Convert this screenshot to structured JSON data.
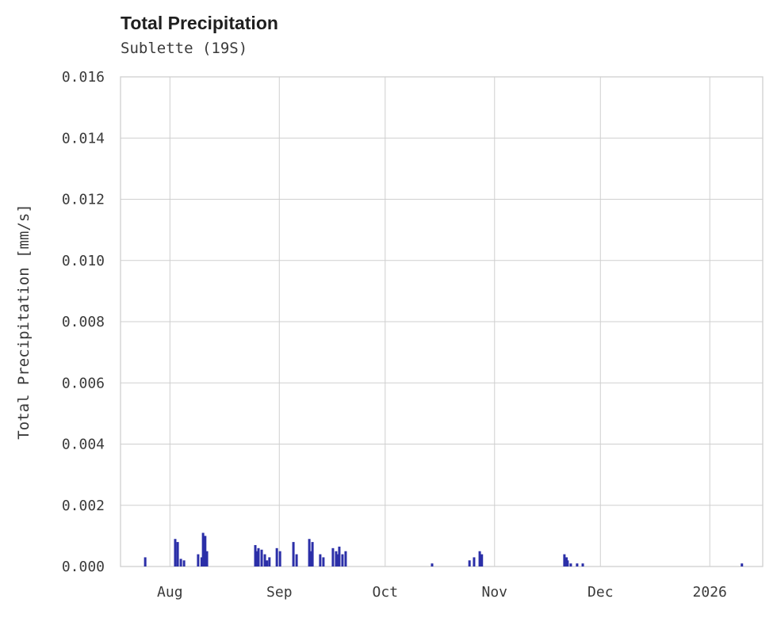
{
  "header": {
    "title": "Total Precipitation",
    "subtitle": "Sublette (19S)"
  },
  "colors": {
    "bar": "#2b2fa8",
    "grid": "#cfcfcf",
    "text": "#3a3a3a",
    "title_text": "#1f1f1f",
    "background": "#ffffff"
  },
  "chart_data": {
    "type": "bar",
    "title": "Total Precipitation",
    "subtitle": "Sublette (19S)",
    "xlabel": "",
    "ylabel": "Total Precipitation [mm/s]",
    "ylim": [
      0,
      0.016
    ],
    "yticks": [
      0.0,
      0.002,
      0.004,
      0.006,
      0.008,
      0.01,
      0.012,
      0.014,
      0.016
    ],
    "ytick_labels": [
      "0.000",
      "0.002",
      "0.004",
      "0.006",
      "0.008",
      "0.010",
      "0.012",
      "0.014",
      "0.016"
    ],
    "grid": true,
    "grid_color": "#cfcfcf",
    "bar_color": "#2b2fa8",
    "x_axis_start_date": "2025-07-18",
    "x_domain_days": 182,
    "xticks": [
      {
        "label": "Aug",
        "day": 14
      },
      {
        "label": "Sep",
        "day": 45
      },
      {
        "label": "Oct",
        "day": 75
      },
      {
        "label": "Nov",
        "day": 106
      },
      {
        "label": "Dec",
        "day": 136
      },
      {
        "label": "2026",
        "day": 167
      }
    ],
    "points": [
      {
        "date": "2025-07-25",
        "day": 7.0,
        "value": 0.0003
      },
      {
        "date": "2025-08-02",
        "day": 15.5,
        "value": 0.0009
      },
      {
        "date": "2025-08-03",
        "day": 16.2,
        "value": 0.0008
      },
      {
        "date": "2025-08-04",
        "day": 17.1,
        "value": 0.00025
      },
      {
        "date": "2025-08-05",
        "day": 18.0,
        "value": 0.0002
      },
      {
        "date": "2025-08-09",
        "day": 22.0,
        "value": 0.0004
      },
      {
        "date": "2025-08-10",
        "day": 23.0,
        "value": 0.0003
      },
      {
        "date": "2025-08-10",
        "day": 23.4,
        "value": 0.0011
      },
      {
        "date": "2025-08-11",
        "day": 24.0,
        "value": 0.001
      },
      {
        "date": "2025-08-11",
        "day": 24.5,
        "value": 0.0005
      },
      {
        "date": "2025-08-25",
        "day": 38.2,
        "value": 0.0007
      },
      {
        "date": "2025-08-25",
        "day": 38.6,
        "value": 0.0005
      },
      {
        "date": "2025-08-26",
        "day": 39.1,
        "value": 0.0006
      },
      {
        "date": "2025-08-27",
        "day": 40.0,
        "value": 0.00055
      },
      {
        "date": "2025-08-28",
        "day": 40.9,
        "value": 0.0004
      },
      {
        "date": "2025-08-29",
        "day": 41.5,
        "value": 0.0002
      },
      {
        "date": "2025-08-29",
        "day": 42.2,
        "value": 0.0003
      },
      {
        "date": "2025-08-31",
        "day": 44.3,
        "value": 0.0006
      },
      {
        "date": "2025-09-01",
        "day": 45.2,
        "value": 0.0005
      },
      {
        "date": "2025-09-05",
        "day": 49.0,
        "value": 0.0008
      },
      {
        "date": "2025-09-06",
        "day": 49.9,
        "value": 0.0004
      },
      {
        "date": "2025-09-09",
        "day": 53.5,
        "value": 0.0009
      },
      {
        "date": "2025-09-10",
        "day": 54.0,
        "value": 0.0005
      },
      {
        "date": "2025-09-10",
        "day": 54.4,
        "value": 0.0008
      },
      {
        "date": "2025-09-13",
        "day": 56.6,
        "value": 0.0004
      },
      {
        "date": "2025-09-13",
        "day": 57.5,
        "value": 0.0003
      },
      {
        "date": "2025-09-16",
        "day": 60.2,
        "value": 0.0006
      },
      {
        "date": "2025-09-17",
        "day": 61.1,
        "value": 0.0005
      },
      {
        "date": "2025-09-17",
        "day": 61.5,
        "value": 0.0004
      },
      {
        "date": "2025-09-18",
        "day": 62.0,
        "value": 0.00065
      },
      {
        "date": "2025-09-19",
        "day": 62.9,
        "value": 0.0004
      },
      {
        "date": "2025-09-20",
        "day": 63.8,
        "value": 0.0005
      },
      {
        "date": "2025-10-14",
        "day": 88.3,
        "value": 0.0001
      },
      {
        "date": "2025-10-25",
        "day": 98.9,
        "value": 0.0002
      },
      {
        "date": "2025-10-26",
        "day": 100.2,
        "value": 0.0003
      },
      {
        "date": "2025-10-28",
        "day": 101.8,
        "value": 0.0005
      },
      {
        "date": "2025-10-28",
        "day": 102.4,
        "value": 0.0004
      },
      {
        "date": "2025-11-21",
        "day": 125.8,
        "value": 0.0004
      },
      {
        "date": "2025-11-22",
        "day": 126.4,
        "value": 0.0003
      },
      {
        "date": "2025-11-22",
        "day": 126.7,
        "value": 0.0002
      },
      {
        "date": "2025-11-23",
        "day": 127.6,
        "value": 0.0001
      },
      {
        "date": "2025-11-25",
        "day": 129.4,
        "value": 0.0001
      },
      {
        "date": "2025-11-26",
        "day": 131.0,
        "value": 0.0001
      },
      {
        "date": "2026-01-10",
        "day": 176.1,
        "value": 0.0001
      }
    ]
  }
}
